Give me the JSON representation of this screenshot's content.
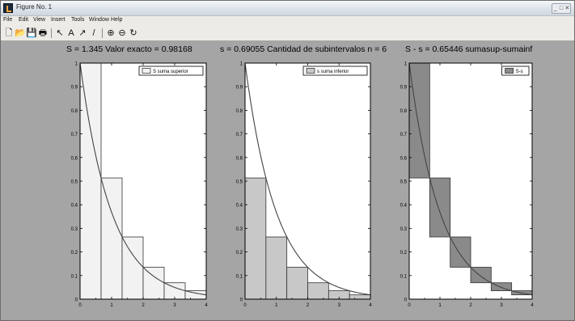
{
  "window": {
    "title": "Figure No. 1",
    "controls": [
      "_",
      "□",
      "✕"
    ]
  },
  "menubar": {
    "items": [
      "File",
      "Edit",
      "View",
      "Insert",
      "Tools",
      "Window",
      "Help"
    ]
  },
  "toolbar": {
    "buttons": [
      {
        "name": "new-figure-button",
        "glyph": "🗋"
      },
      {
        "name": "open-file-button",
        "glyph": "📂"
      },
      {
        "name": "save-button",
        "glyph": "💾"
      },
      {
        "name": "print-button",
        "glyph": "🖶"
      },
      {
        "name": "edit-plot-arrow-button",
        "glyph": "↖"
      },
      {
        "name": "insert-text-button",
        "glyph": "A"
      },
      {
        "name": "insert-arrow-button",
        "glyph": "↗"
      },
      {
        "name": "insert-line-button",
        "glyph": "/"
      },
      {
        "name": "zoom-in-button",
        "glyph": "⊕"
      },
      {
        "name": "zoom-out-button",
        "glyph": "⊖"
      },
      {
        "name": "rotate-3d-button",
        "glyph": "↻"
      }
    ]
  },
  "plot_titles": [
    "S =  1.345 Valor exacto = 0.98168",
    "s = 0.69055 Cantidad de subintervalos n =  6",
    "S - s = 0.65446 sumasup-sumainf"
  ],
  "colors": {
    "figure_bg": "#a5a5a5",
    "axes_bg": "#ffffff",
    "upper_sum_fill": "#f2f2f2",
    "lower_sum_fill": "#c8c8c8",
    "difference_fill": "#8a8a8a",
    "curve": "#444444",
    "bar_edge": "#333333"
  },
  "chart_data": [
    {
      "type": "bar",
      "function": "exp(-x)",
      "xlim": [
        0,
        4
      ],
      "ylim": [
        0,
        1
      ],
      "xticks": [
        0,
        1,
        2,
        3,
        4
      ],
      "yticks": [
        0,
        0.1,
        0.2,
        0.3,
        0.4,
        0.5,
        0.6,
        0.7,
        0.8,
        0.9,
        1
      ],
      "bar_edges": [
        0,
        0.6667,
        1.3333,
        2,
        2.6667,
        3.3333,
        4
      ],
      "series": [
        {
          "name": "S suma superior",
          "bottom": [
            0,
            0,
            0,
            0,
            0,
            0
          ],
          "top": [
            1,
            0.5134,
            0.2636,
            0.1353,
            0.0695,
            0.0357
          ]
        }
      ],
      "legend": "top-right",
      "legend_labels": [
        "S suma superior"
      ]
    },
    {
      "type": "bar",
      "function": "exp(-x)",
      "xlim": [
        0,
        4
      ],
      "ylim": [
        0,
        1
      ],
      "xticks": [
        0,
        1,
        2,
        3,
        4
      ],
      "yticks": [
        0,
        0.1,
        0.2,
        0.3,
        0.4,
        0.5,
        0.6,
        0.7,
        0.8,
        0.9,
        1
      ],
      "bar_edges": [
        0,
        0.6667,
        1.3333,
        2,
        2.6667,
        3.3333,
        4
      ],
      "series": [
        {
          "name": "s suma inferior",
          "bottom": [
            0,
            0,
            0,
            0,
            0,
            0
          ],
          "top": [
            0.5134,
            0.2636,
            0.1353,
            0.0695,
            0.0357,
            0.0183
          ]
        }
      ],
      "legend": "top-right",
      "legend_labels": [
        "s suma inferior"
      ]
    },
    {
      "type": "bar",
      "function": "exp(-x)",
      "xlim": [
        0,
        4
      ],
      "ylim": [
        0,
        1
      ],
      "xticks": [
        0,
        1,
        2,
        3,
        4
      ],
      "yticks": [
        0,
        0.1,
        0.2,
        0.3,
        0.4,
        0.5,
        0.6,
        0.7,
        0.8,
        0.9,
        1
      ],
      "bar_edges": [
        0,
        0.6667,
        1.3333,
        2,
        2.6667,
        3.3333,
        4
      ],
      "series": [
        {
          "name": "S-s",
          "bottom": [
            0.5134,
            0.2636,
            0.1353,
            0.0695,
            0.0357,
            0.0183
          ],
          "top": [
            1,
            0.5134,
            0.2636,
            0.1353,
            0.0695,
            0.0357
          ]
        }
      ],
      "legend": "top-right",
      "legend_labels": [
        "S-s"
      ]
    }
  ]
}
